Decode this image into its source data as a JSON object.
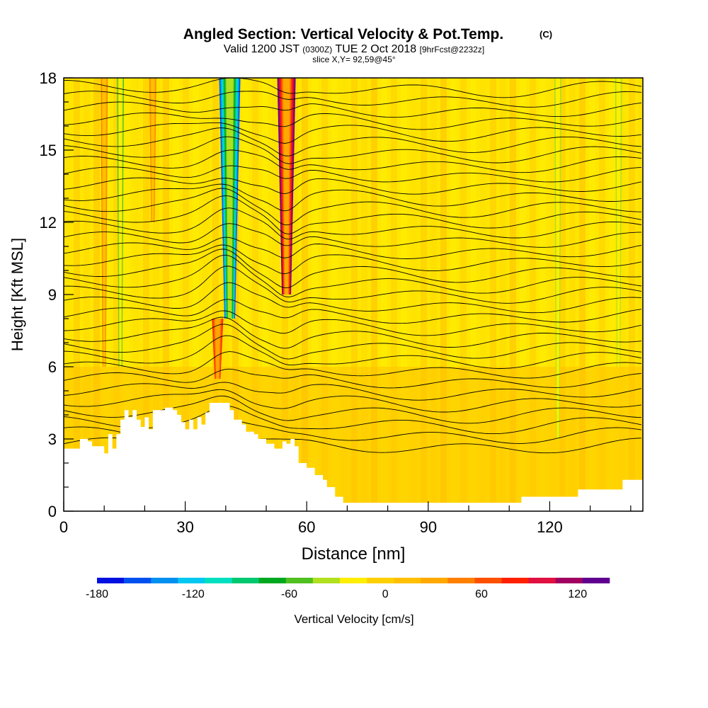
{
  "chart_data": {
    "type": "heatmap",
    "title": "Angled Section: Vertical Velocity & Pot.Temp.",
    "title_units": "(C)",
    "subtitle_prefix": "Valid 1200 JST",
    "subtitle_utc": "(0300Z)",
    "subtitle_date": "TUE 2 Oct 2018",
    "subtitle_fcst": "[9hrFcst@2232z]",
    "slice_label": "slice X,Y= 92,59@45°",
    "xlabel": "Distance [nm]",
    "ylabel": "Height [Kft MSL]",
    "xlim": [
      0,
      143
    ],
    "ylim": [
      0,
      18
    ],
    "x_ticks": [
      "0",
      "30",
      "60",
      "90",
      "120"
    ],
    "x_tick_values": [
      0,
      30,
      60,
      90,
      120
    ],
    "y_ticks": [
      "0",
      "3",
      "6",
      "9",
      "12",
      "15",
      "18"
    ],
    "y_tick_values": [
      0,
      3,
      6,
      9,
      12,
      15,
      18
    ],
    "colorbar_label": "Vertical Velocity [cm/s]",
    "colorbar_range": [
      -180,
      140
    ],
    "colorbar_tick_labels": [
      "-180",
      "-120",
      "-60",
      "0",
      "60",
      "120"
    ],
    "colorbar_tick_values": [
      -180,
      -120,
      -60,
      0,
      60,
      120
    ],
    "colorbar_colors": [
      "#0010e0",
      "#0050f0",
      "#0090f0",
      "#00c8f0",
      "#00e0c0",
      "#00c870",
      "#00a820",
      "#50c020",
      "#b0e020",
      "#ffee00",
      "#ffd000",
      "#ffc000",
      "#ffa800",
      "#ff8000",
      "#ff5000",
      "#ff2000",
      "#e01040",
      "#a00060",
      "#600090"
    ],
    "features": [
      {
        "name": "updraft",
        "x": 38,
        "w_cm_s": 80,
        "from_kft": 5.5,
        "to_kft": 8
      },
      {
        "name": "downdraft",
        "x": 41,
        "w_cm_s": -150,
        "from_kft": 8,
        "to_kft": 18
      },
      {
        "name": "updraft",
        "x": 55,
        "w_cm_s": 130,
        "from_kft": 9,
        "to_kft": 18
      },
      {
        "name": "updraft",
        "x": 10,
        "w_cm_s": 50,
        "from_kft": 6,
        "to_kft": 18
      },
      {
        "name": "downdraft",
        "x": 14,
        "w_cm_s": -50,
        "from_kft": 6,
        "to_kft": 18
      },
      {
        "name": "updraft",
        "x": 22,
        "w_cm_s": 50,
        "from_kft": 12,
        "to_kft": 18
      },
      {
        "name": "downdraft",
        "x": 122,
        "w_cm_s": -40,
        "from_kft": 3,
        "to_kft": 18
      },
      {
        "name": "downdraft",
        "x": 137,
        "w_cm_s": -35,
        "from_kft": 6,
        "to_kft": 18
      }
    ],
    "terrain_kft": [
      [
        0,
        2.6
      ],
      [
        3,
        2.6
      ],
      [
        4,
        3.0
      ],
      [
        6,
        2.9
      ],
      [
        7,
        2.7
      ],
      [
        9,
        2.7
      ],
      [
        10,
        2.4
      ],
      [
        11,
        3.2
      ],
      [
        12,
        2.6
      ],
      [
        13,
        3.2
      ],
      [
        14,
        3.8
      ],
      [
        15,
        4.2
      ],
      [
        16,
        3.9
      ],
      [
        17,
        4.2
      ],
      [
        18,
        3.8
      ],
      [
        19,
        3.5
      ],
      [
        20,
        3.9
      ],
      [
        21,
        3.4
      ],
      [
        22,
        4.2
      ],
      [
        25,
        4.3
      ],
      [
        27,
        4.2
      ],
      [
        28,
        4.0
      ],
      [
        29,
        3.7
      ],
      [
        30,
        3.4
      ],
      [
        31,
        3.8
      ],
      [
        32,
        3.4
      ],
      [
        33,
        3.9
      ],
      [
        34,
        3.6
      ],
      [
        35,
        4.1
      ],
      [
        36,
        4.5
      ],
      [
        40,
        4.5
      ],
      [
        41,
        4.2
      ],
      [
        42,
        3.8
      ],
      [
        44,
        3.6
      ],
      [
        45,
        3.3
      ],
      [
        47,
        3.2
      ],
      [
        48,
        3.0
      ],
      [
        50,
        2.8
      ],
      [
        52,
        2.6
      ],
      [
        54,
        2.9
      ],
      [
        55,
        2.8
      ],
      [
        56,
        3.0
      ],
      [
        57,
        2.7
      ],
      [
        58,
        2.0
      ],
      [
        60,
        1.8
      ],
      [
        62,
        1.5
      ],
      [
        64,
        1.3
      ],
      [
        65,
        1.0
      ],
      [
        67,
        0.6
      ],
      [
        69,
        0.35
      ],
      [
        80,
        0.35
      ],
      [
        110,
        0.35
      ],
      [
        113,
        0.6
      ],
      [
        120,
        0.6
      ],
      [
        127,
        0.9
      ],
      [
        137,
        0.9
      ],
      [
        138,
        1.3
      ],
      [
        143,
        1.3
      ]
    ]
  }
}
